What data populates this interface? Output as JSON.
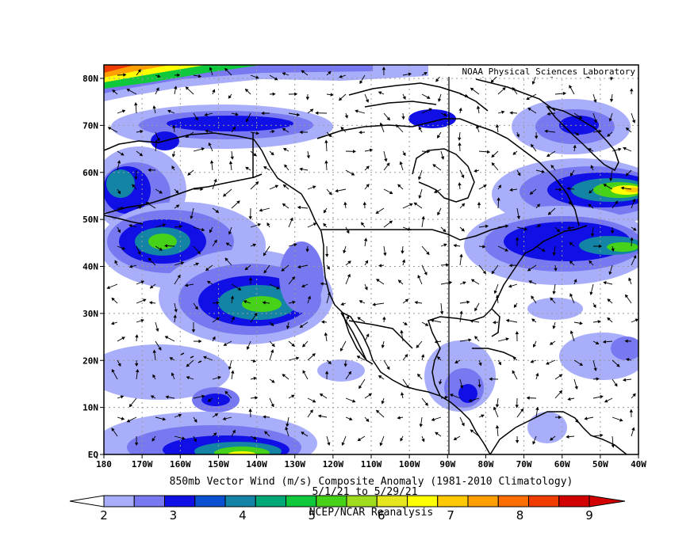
{
  "map": {
    "credit": "NOAA Physical Sciences Laboratory",
    "title": "850mb Vector Wind (m/s) Composite Anomaly (1981-2010 Climatology)",
    "date_range": "5/1/21 to 5/29/21",
    "source": "NCEP/NCAR Reanalysis",
    "lon_labels": [
      "180",
      "170W",
      "160W",
      "150W",
      "140W",
      "130W",
      "120W",
      "110W",
      "100W",
      "90W",
      "80W",
      "70W",
      "60W",
      "50W",
      "40W"
    ],
    "lat_labels": [
      "EQ",
      "10N",
      "20N",
      "30N",
      "40N",
      "50N",
      "60N",
      "70N",
      "80N"
    ],
    "colorbar": {
      "labels": [
        "2",
        "3",
        "4",
        "5",
        "6",
        "7",
        "8",
        "9"
      ],
      "colors": [
        "#a8aefa",
        "#7878f0",
        "#1010e6",
        "#0a50d2",
        "#1384a6",
        "#00a878",
        "#10c83c",
        "#46d218",
        "#a0dc1e",
        "#e6e61e",
        "#ffff00",
        "#ffc800",
        "#ffa000",
        "#ff6e00",
        "#f03c00",
        "#d20000"
      ]
    },
    "shade_colors": [
      "#a8aefa",
      "#7878f0",
      "#1010e6",
      "#0a50d2",
      "#1384a6",
      "#00a878",
      "#10c83c",
      "#a0dc1e",
      "#ffff00",
      "#ffc800",
      "#ff6e00",
      "#f03c00"
    ]
  }
}
